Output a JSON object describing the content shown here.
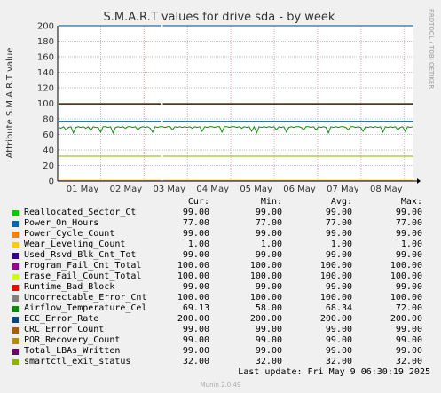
{
  "chart_data": {
    "type": "line",
    "title": "S.M.A.R.T values for drive sda - by week",
    "ylabel": "Attribute S.M.A.R.T value",
    "side_label": "RRDTOOL / TOBI OETIKER",
    "ylim": [
      0,
      200
    ],
    "y_ticks": [
      0,
      20,
      40,
      60,
      80,
      100,
      120,
      140,
      160,
      180,
      200
    ],
    "x_ticks": [
      "01 May",
      "02 May",
      "03 May",
      "04 May",
      "05 May",
      "06 May",
      "07 May",
      "08 May"
    ],
    "grid": true,
    "columns": [
      "Cur:",
      "Min:",
      "Avg:",
      "Max:"
    ],
    "series": [
      {
        "name": "Reallocated_Sector_Ct",
        "color": "#00cc00",
        "cur": "99.00",
        "min": "99.00",
        "avg": "99.00",
        "max": "99.00"
      },
      {
        "name": "Power_On_Hours",
        "color": "#0066b3",
        "cur": "77.00",
        "min": "77.00",
        "avg": "77.00",
        "max": "77.00"
      },
      {
        "name": "Power_Cycle_Count",
        "color": "#ff8000",
        "cur": "99.00",
        "min": "99.00",
        "avg": "99.00",
        "max": "99.00"
      },
      {
        "name": "Wear_Leveling_Count",
        "color": "#ffcc00",
        "cur": "1.00",
        "min": "1.00",
        "avg": "1.00",
        "max": "1.00"
      },
      {
        "name": "Used_Rsvd_Blk_Cnt_Tot",
        "color": "#330099",
        "cur": "99.00",
        "min": "99.00",
        "avg": "99.00",
        "max": "99.00"
      },
      {
        "name": "Program_Fail_Cnt_Total",
        "color": "#990099",
        "cur": "100.00",
        "min": "100.00",
        "avg": "100.00",
        "max": "100.00"
      },
      {
        "name": "Erase_Fail_Count_Total",
        "color": "#ccff00",
        "cur": "100.00",
        "min": "100.00",
        "avg": "100.00",
        "max": "100.00"
      },
      {
        "name": "Runtime_Bad_Block",
        "color": "#ff0000",
        "cur": "99.00",
        "min": "99.00",
        "avg": "99.00",
        "max": "99.00"
      },
      {
        "name": "Uncorrectable_Error_Cnt",
        "color": "#808080",
        "cur": "100.00",
        "min": "100.00",
        "avg": "100.00",
        "max": "100.00"
      },
      {
        "name": "Airflow_Temperature_Cel",
        "color": "#008f00",
        "cur": "69.13",
        "min": "58.00",
        "avg": "68.34",
        "max": "72.00"
      },
      {
        "name": "ECC_Error_Rate",
        "color": "#00487d",
        "cur": "200.00",
        "min": "200.00",
        "avg": "200.00",
        "max": "200.00"
      },
      {
        "name": "CRC_Error_Count",
        "color": "#b35a00",
        "cur": "99.00",
        "min": "99.00",
        "avg": "99.00",
        "max": "99.00"
      },
      {
        "name": "POR_Recovery_Count",
        "color": "#b38f00",
        "cur": "99.00",
        "min": "99.00",
        "avg": "99.00",
        "max": "99.00"
      },
      {
        "name": "Total_LBAs_Written",
        "color": "#6b006b",
        "cur": "99.00",
        "min": "99.00",
        "avg": "99.00",
        "max": "99.00"
      },
      {
        "name": "smartctl_exit_status",
        "color": "#8fb300",
        "cur": "32.00",
        "min": "32.00",
        "avg": "32.00",
        "max": "32.00"
      }
    ],
    "temperature_trace": [
      69,
      68,
      70,
      66,
      69,
      70,
      62,
      69,
      70,
      69,
      70,
      68,
      70,
      65,
      70,
      69,
      69,
      63,
      70,
      70,
      69,
      70,
      62,
      69,
      70,
      69,
      70,
      68,
      70,
      70,
      69,
      70,
      66,
      69,
      70,
      69,
      70,
      68,
      63,
      70,
      69,
      70,
      70,
      69,
      70,
      70,
      66,
      70,
      69,
      70,
      69,
      70,
      69,
      70,
      68,
      70,
      69,
      70,
      64,
      70,
      69,
      70,
      70,
      69,
      70,
      70,
      63,
      70,
      70,
      69,
      70,
      70,
      69,
      70,
      68,
      70,
      69,
      70,
      64,
      70,
      62,
      70,
      69,
      70,
      69,
      70,
      69,
      70,
      66,
      70,
      69,
      70,
      63,
      69,
      70,
      69,
      70,
      70,
      69,
      66,
      70,
      70,
      69,
      70,
      66,
      70,
      69,
      70,
      69,
      62,
      70,
      69,
      70,
      69,
      70,
      70,
      69,
      66,
      70,
      70,
      69,
      70,
      69,
      64,
      70,
      69,
      70,
      69,
      70,
      69,
      70,
      63,
      70,
      69,
      70,
      69,
      70,
      66,
      69,
      70,
      64,
      70,
      69,
      70
    ]
  },
  "last_update": "Last update: Fri May  9 06:30:19 2025",
  "footer": "Munin 2.0.49"
}
